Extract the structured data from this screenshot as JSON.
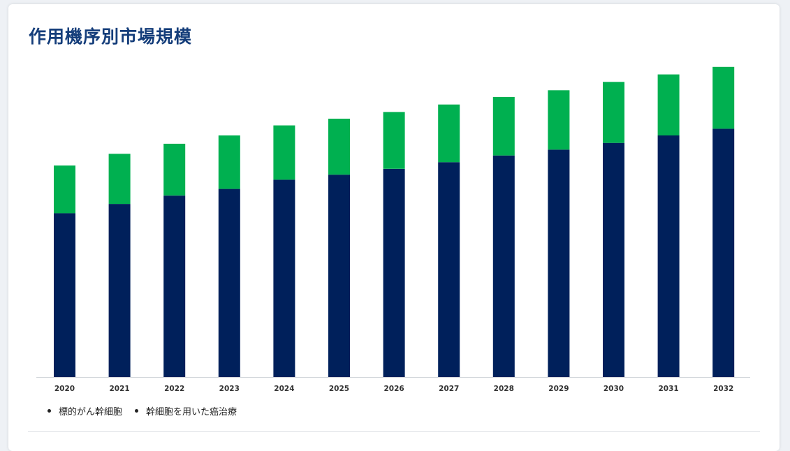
{
  "card": {
    "title": "作用機序別市場規模"
  },
  "chart_data": {
    "type": "bar",
    "stacked": true,
    "categories": [
      "2020",
      "2021",
      "2022",
      "2023",
      "2024",
      "2025",
      "2026",
      "2027",
      "2028",
      "2029",
      "2030",
      "2031",
      "2032"
    ],
    "series": [
      {
        "name": "標的がん幹細胞",
        "color": "#00205b",
        "values": [
          196,
          207,
          217,
          225,
          236,
          242,
          249,
          257,
          265,
          272,
          280,
          289,
          297
        ]
      },
      {
        "name": "幹細胞を用いた癌治療",
        "color": "#00b050",
        "values": [
          57,
          60,
          62,
          64,
          65,
          67,
          68,
          69,
          70,
          71,
          73,
          73,
          74
        ]
      }
    ],
    "ylim": [
      0,
      380
    ],
    "grid": false,
    "legend_position": "bottom-left"
  }
}
